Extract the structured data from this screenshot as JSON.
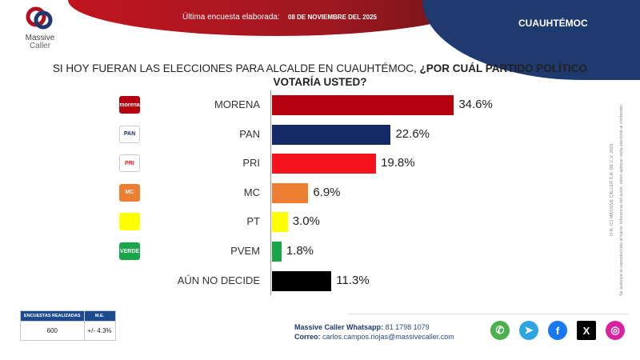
{
  "header": {
    "date_label": "Última encuesta elaborada:",
    "date": "08 DE NOVIEMBRE DEL 2025",
    "location": "CUAUHTÉMOC",
    "logo_text": [
      "Massive",
      "Caller"
    ]
  },
  "title": {
    "part1": "SI HOY FUERAN LAS ELECCIONES PARA ALCALDE EN CUAUHTÉMOC, ",
    "part2": "¿POR CUÁL PARTIDO POLÍTICO VOTARÍA USTED?"
  },
  "chart_data": {
    "type": "bar",
    "orientation": "horizontal",
    "categories": [
      "MORENA",
      "PAN",
      "PRI",
      "MC",
      "PT",
      "PVEM",
      "AÚN NO DECIDE"
    ],
    "values": [
      34.6,
      22.6,
      19.8,
      6.9,
      3.0,
      1.8,
      11.3
    ],
    "value_labels": [
      "34.6%",
      "22.6%",
      "19.8%",
      "6.9%",
      "3.0%",
      "1.8%",
      "11.3%"
    ],
    "colors": [
      "#b5000f",
      "#142a66",
      "#f5141e",
      "#ee7e31",
      "#ffff00",
      "#1aa548",
      "#000000"
    ],
    "party_logos": [
      "morena",
      "PAN",
      "PRI",
      "MC",
      "PT",
      "VERDE",
      ""
    ]
  },
  "legal": {
    "line1": "D.R. (C) MASSIVE CALLER S.A. DE C.V. 2025",
    "line2": "Se autoriza la reproducción al hacer referencia del autor, salvo aplique veda electoral al contenido"
  },
  "survey_table": {
    "headers": [
      "ENCUESTAS REALIZADAS",
      "M.E."
    ],
    "values": [
      "600",
      "+/- 4.3%"
    ]
  },
  "contact": {
    "whatsapp_label": "Massive Caller Whatsapp:",
    "whatsapp": "81 1798 1079",
    "email_label": "Correo:",
    "email": "carlos.campos.riojas@massivecaller.com"
  },
  "social": [
    {
      "name": "whatsapp",
      "color": "#4caf50",
      "glyph": "✆"
    },
    {
      "name": "telegram",
      "color": "#2ca5e0",
      "glyph": "➤"
    },
    {
      "name": "facebook",
      "color": "#1877f2",
      "glyph": "f"
    },
    {
      "name": "x",
      "color": "#000000",
      "glyph": "X"
    },
    {
      "name": "instagram",
      "color": "#d6249f",
      "glyph": "◎"
    }
  ]
}
